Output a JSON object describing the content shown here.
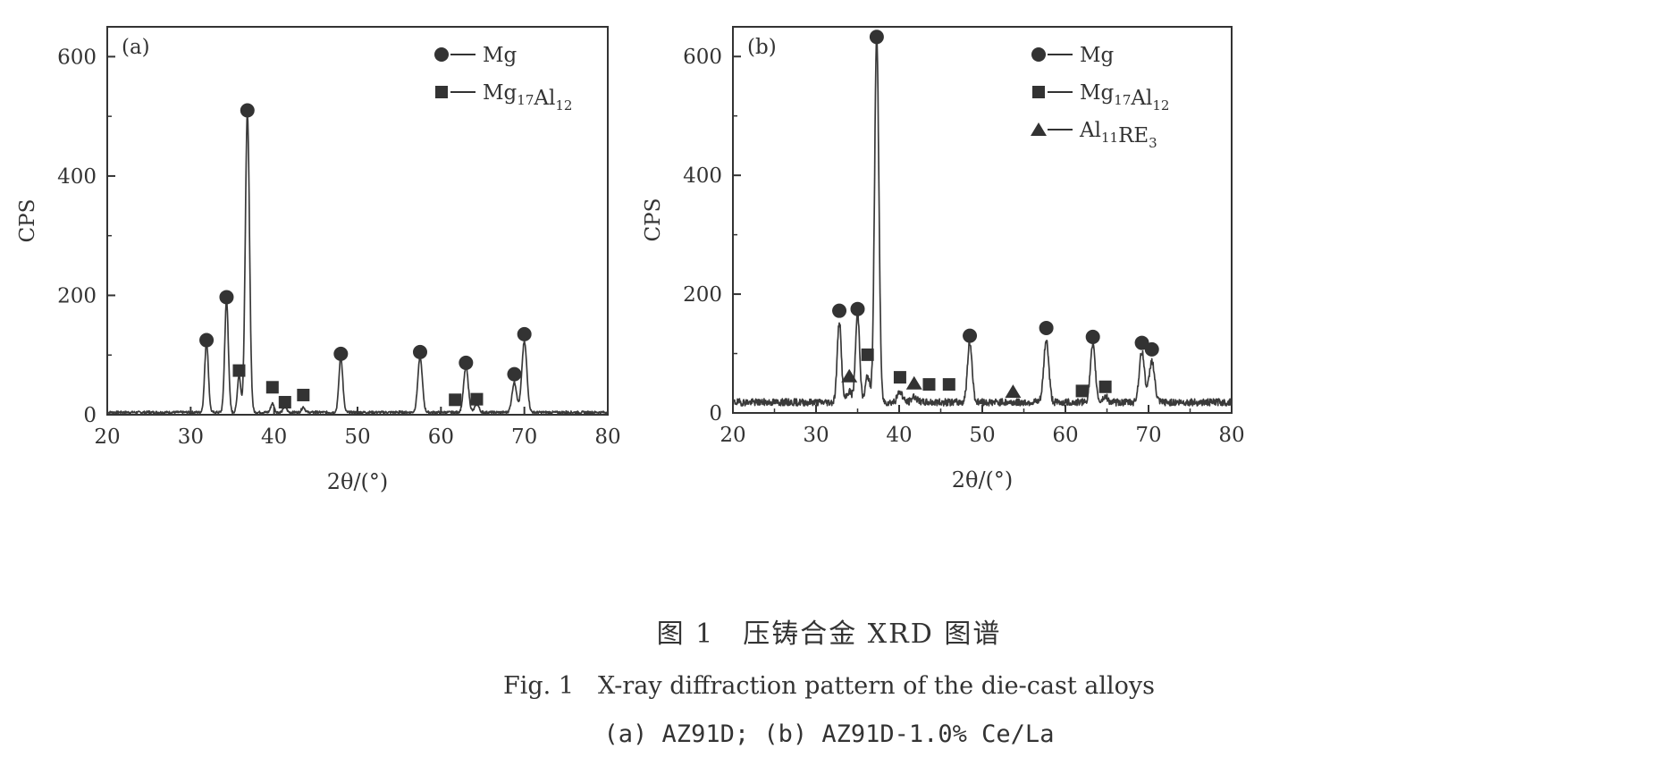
{
  "caption": {
    "chinese": "图 1　压铸合金 XRD 图谱",
    "english": "Fig. 1　X-ray diffraction pattern of the die-cast alloys",
    "sub": "(a) AZ91D; (b) AZ91D-1.0% Ce/La"
  },
  "chart_data": [
    {
      "type": "line",
      "panel_label": "(a)",
      "xlabel": "2θ/(°)",
      "ylabel": "CPS",
      "xlim": [
        20,
        80
      ],
      "ylim": [
        0,
        650
      ],
      "xticks": [
        20,
        30,
        40,
        50,
        60,
        70,
        80
      ],
      "yticks": [
        0,
        200,
        400,
        600
      ],
      "baseline": 4,
      "noise": 2,
      "peaks": [
        {
          "x": 31.9,
          "h": 118,
          "w": 0.22
        },
        {
          "x": 34.3,
          "h": 187,
          "w": 0.22
        },
        {
          "x": 35.8,
          "h": 62,
          "w": 0.2
        },
        {
          "x": 36.8,
          "h": 500,
          "w": 0.25
        },
        {
          "x": 39.8,
          "h": 15,
          "w": 0.2
        },
        {
          "x": 41.3,
          "h": 10,
          "w": 0.2
        },
        {
          "x": 43.5,
          "h": 9,
          "w": 0.2
        },
        {
          "x": 48.0,
          "h": 92,
          "w": 0.23
        },
        {
          "x": 57.5,
          "h": 92,
          "w": 0.27
        },
        {
          "x": 63.0,
          "h": 76,
          "w": 0.28
        },
        {
          "x": 64.3,
          "h": 14,
          "w": 0.25
        },
        {
          "x": 68.8,
          "h": 50,
          "w": 0.28
        },
        {
          "x": 70.0,
          "h": 118,
          "w": 0.3
        }
      ],
      "markers": [
        {
          "phase": "Mg",
          "x": 31.9,
          "y": 125
        },
        {
          "phase": "Mg",
          "x": 34.3,
          "y": 197
        },
        {
          "phase": "Mg17Al12",
          "x": 35.8,
          "y": 74
        },
        {
          "phase": "Mg",
          "x": 36.8,
          "y": 510
        },
        {
          "phase": "Mg17Al12",
          "x": 39.8,
          "y": 46
        },
        {
          "phase": "Mg17Al12",
          "x": 41.3,
          "y": 21
        },
        {
          "phase": "Mg17Al12",
          "x": 43.5,
          "y": 33
        },
        {
          "phase": "Mg",
          "x": 48.0,
          "y": 102
        },
        {
          "phase": "Mg",
          "x": 57.5,
          "y": 105
        },
        {
          "phase": "Mg17Al12",
          "x": 61.7,
          "y": 25
        },
        {
          "phase": "Mg",
          "x": 63.0,
          "y": 87
        },
        {
          "phase": "Mg17Al12",
          "x": 64.3,
          "y": 26
        },
        {
          "phase": "Mg",
          "x": 68.8,
          "y": 68
        },
        {
          "phase": "Mg",
          "x": 70.0,
          "y": 135
        }
      ],
      "legend": [
        {
          "phase": "Mg",
          "marker": "circle",
          "label": "Mg",
          "sub": []
        },
        {
          "phase": "Mg17Al12",
          "marker": "square",
          "label": "Mg17Al12",
          "sub": [
            "17",
            "12"
          ]
        }
      ]
    },
    {
      "type": "line",
      "panel_label": "(b)",
      "xlabel": "2θ/(°)",
      "ylabel": "CPS",
      "xlim": [
        20,
        80
      ],
      "ylim": [
        0,
        650
      ],
      "xticks": [
        20,
        30,
        40,
        50,
        60,
        70,
        80
      ],
      "yticks": [
        0,
        200,
        400,
        600
      ],
      "baseline": 18,
      "noise": 6,
      "peaks": [
        {
          "x": 32.8,
          "h": 135,
          "w": 0.25
        },
        {
          "x": 34.0,
          "h": 18,
          "w": 0.3
        },
        {
          "x": 35.0,
          "h": 150,
          "w": 0.25
        },
        {
          "x": 36.2,
          "h": 45,
          "w": 0.25
        },
        {
          "x": 37.3,
          "h": 615,
          "w": 0.26
        },
        {
          "x": 40.1,
          "h": 18,
          "w": 0.3
        },
        {
          "x": 41.8,
          "h": 10,
          "w": 0.3
        },
        {
          "x": 48.5,
          "h": 100,
          "w": 0.28
        },
        {
          "x": 57.7,
          "h": 105,
          "w": 0.3
        },
        {
          "x": 63.3,
          "h": 95,
          "w": 0.3
        },
        {
          "x": 64.8,
          "h": 10,
          "w": 0.3
        },
        {
          "x": 69.2,
          "h": 85,
          "w": 0.32
        },
        {
          "x": 70.4,
          "h": 70,
          "w": 0.32
        }
      ],
      "markers": [
        {
          "phase": "Mg",
          "x": 32.8,
          "y": 172
        },
        {
          "phase": "Al11RE3",
          "x": 34.0,
          "y": 62
        },
        {
          "phase": "Mg",
          "x": 35.0,
          "y": 175
        },
        {
          "phase": "Mg17Al12",
          "x": 36.2,
          "y": 98
        },
        {
          "phase": "Mg",
          "x": 37.3,
          "y": 633
        },
        {
          "phase": "Mg17Al12",
          "x": 40.1,
          "y": 60
        },
        {
          "phase": "Al11RE3",
          "x": 41.8,
          "y": 50
        },
        {
          "phase": "Mg17Al12",
          "x": 43.6,
          "y": 48
        },
        {
          "phase": "Mg17Al12",
          "x": 46.0,
          "y": 48
        },
        {
          "phase": "Mg",
          "x": 48.5,
          "y": 130
        },
        {
          "phase": "Al11RE3",
          "x": 53.7,
          "y": 36
        },
        {
          "phase": "Mg",
          "x": 57.7,
          "y": 143
        },
        {
          "phase": "Mg17Al12",
          "x": 62.0,
          "y": 37
        },
        {
          "phase": "Mg",
          "x": 63.3,
          "y": 128
        },
        {
          "phase": "Mg17Al12",
          "x": 64.8,
          "y": 44
        },
        {
          "phase": "Mg",
          "x": 69.2,
          "y": 118
        },
        {
          "phase": "Mg",
          "x": 70.4,
          "y": 107
        }
      ],
      "legend": [
        {
          "phase": "Mg",
          "marker": "circle",
          "label": "Mg",
          "sub": []
        },
        {
          "phase": "Mg17Al12",
          "marker": "square",
          "label": "Mg17Al12",
          "sub": [
            "17",
            "12"
          ]
        },
        {
          "phase": "Al11RE3",
          "marker": "triangle",
          "label": "Al11RE3",
          "sub": [
            "11",
            "3"
          ]
        }
      ]
    }
  ]
}
